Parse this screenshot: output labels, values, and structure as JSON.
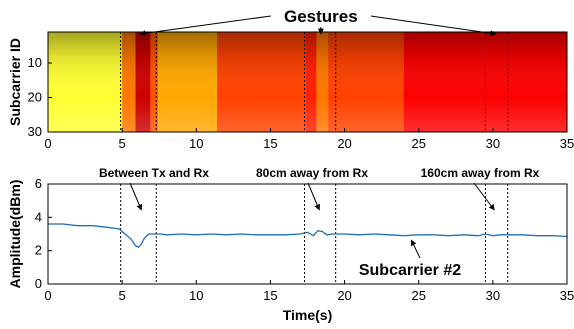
{
  "chart_data": [
    {
      "type": "heatmap",
      "title": "Gestures",
      "xlabel": "",
      "ylabel": "Subcarrier ID",
      "xlim": [
        0,
        35
      ],
      "ylim": [
        1,
        30
      ],
      "y_inverted": true,
      "xticks": [
        "0",
        "5",
        "10",
        "15",
        "20",
        "25",
        "30",
        "35"
      ],
      "yticks": [
        "10",
        "20",
        "30"
      ],
      "colormap": "hot",
      "segments": [
        {
          "x0": 0,
          "x1": 5.0,
          "level": 0.8
        },
        {
          "x0": 5.0,
          "x1": 5.9,
          "level": 0.55
        },
        {
          "x0": 5.9,
          "x1": 6.9,
          "level": 0.3
        },
        {
          "x0": 6.9,
          "x1": 7.4,
          "level": 0.5
        },
        {
          "x0": 7.4,
          "x1": 11.4,
          "level": 0.62
        },
        {
          "x0": 11.4,
          "x1": 17.4,
          "level": 0.47
        },
        {
          "x0": 17.4,
          "x1": 18.1,
          "level": 0.42
        },
        {
          "x0": 18.1,
          "x1": 18.9,
          "level": 0.55
        },
        {
          "x0": 18.9,
          "x1": 24.0,
          "level": 0.47
        },
        {
          "x0": 24.0,
          "x1": 35,
          "level": 0.37
        }
      ],
      "gesture_markers_x": [
        6.2,
        18.4,
        30.2
      ]
    },
    {
      "type": "line",
      "xlabel": "Time(s)",
      "ylabel": "Amplitude(dBm)",
      "xlim": [
        0,
        35
      ],
      "ylim": [
        0,
        6
      ],
      "xticks": [
        "0",
        "5",
        "10",
        "15",
        "20",
        "25",
        "30",
        "35"
      ],
      "yticks": [
        "0",
        "2",
        "4",
        "6"
      ],
      "series": [
        {
          "name": "Subcarrier #2",
          "color": "#1f6fb4",
          "x": [
            0,
            1,
            2,
            3,
            4,
            4.8,
            5.2,
            5.6,
            5.9,
            6.1,
            6.3,
            6.5,
            6.8,
            7.2,
            7.6,
            8,
            9,
            10,
            11,
            12,
            13,
            14,
            15,
            16,
            17,
            17.5,
            17.9,
            18.2,
            18.5,
            18.8,
            19.2,
            20,
            21,
            22,
            23,
            24,
            25,
            26,
            27,
            28,
            29,
            29.5,
            30,
            30.5,
            31,
            32,
            33,
            34,
            35
          ],
          "y": [
            3.6,
            3.6,
            3.5,
            3.5,
            3.4,
            3.3,
            3.0,
            2.7,
            2.3,
            2.2,
            2.4,
            2.75,
            3.0,
            3.0,
            3.0,
            2.95,
            3.0,
            2.95,
            3.0,
            2.95,
            3.0,
            2.95,
            2.95,
            2.95,
            3.0,
            3.1,
            2.9,
            3.2,
            3.15,
            2.95,
            3.0,
            3.0,
            2.95,
            3.0,
            2.95,
            2.9,
            2.95,
            2.95,
            2.9,
            2.95,
            2.9,
            3.0,
            2.9,
            2.95,
            2.95,
            2.95,
            2.9,
            2.9,
            2.85
          ]
        }
      ],
      "dashed_lines_x": [
        4.9,
        7.3,
        17.3,
        19.4,
        29.5,
        31.0
      ],
      "annotations": [
        {
          "text": "Between Tx and Rx",
          "points_to_x": 6.3
        },
        {
          "text": "80cm away from Rx",
          "points_to_x": 18.3
        },
        {
          "text": "160cm away from Rx",
          "points_to_x": 30.1
        },
        {
          "text": "Subcarrier #2",
          "points_to_x": 24.5
        }
      ]
    }
  ]
}
